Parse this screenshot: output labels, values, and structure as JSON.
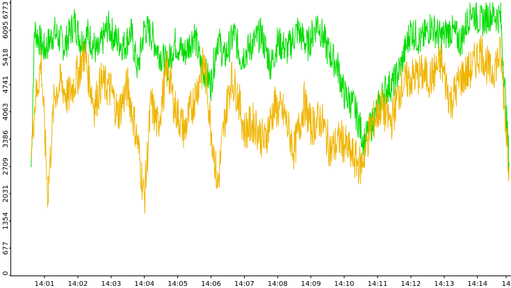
{
  "chart_data": {
    "type": "line",
    "title": "",
    "xlabel": "",
    "ylabel": "",
    "grid": false,
    "legend": "none",
    "x_tick_labels": [
      "14:01",
      "14:02",
      "14:03",
      "14:04",
      "14:05",
      "14:06",
      "14:07",
      "14:08",
      "14:09",
      "14:10",
      "14:11",
      "14:12",
      "14:13",
      "14:14",
      "14"
    ],
    "y_tick_labels": [
      "0",
      "677",
      "1354",
      "2031",
      "2709",
      "3386",
      "4063",
      "4741",
      "5418",
      "6095",
      "6773"
    ],
    "ylim": [
      0,
      6773
    ],
    "xlim_minutes": [
      0.6,
      15.0
    ],
    "series": [
      {
        "color": "#00dd00",
        "points": [
          [
            0.6,
            2700
          ],
          [
            0.7,
            6100
          ],
          [
            1.0,
            5600
          ],
          [
            1.3,
            6050
          ],
          [
            1.6,
            5700
          ],
          [
            1.9,
            6300
          ],
          [
            2.1,
            5800
          ],
          [
            2.3,
            6000
          ],
          [
            2.6,
            5500
          ],
          [
            2.9,
            6200
          ],
          [
            3.1,
            5900
          ],
          [
            3.4,
            5700
          ],
          [
            3.6,
            6050
          ],
          [
            3.8,
            5100
          ],
          [
            4.0,
            6150
          ],
          [
            4.2,
            6000
          ],
          [
            4.4,
            5600
          ],
          [
            4.7,
            5200
          ],
          [
            4.9,
            5800
          ],
          [
            5.2,
            5500
          ],
          [
            5.5,
            6000
          ],
          [
            5.7,
            5200
          ],
          [
            6.0,
            4750
          ],
          [
            6.2,
            5900
          ],
          [
            6.4,
            5400
          ],
          [
            6.7,
            6000
          ],
          [
            6.9,
            5400
          ],
          [
            7.2,
            5700
          ],
          [
            7.5,
            6000
          ],
          [
            7.8,
            5200
          ],
          [
            8.0,
            5800
          ],
          [
            8.3,
            5600
          ],
          [
            8.6,
            6100
          ],
          [
            8.9,
            5700
          ],
          [
            9.2,
            6300
          ],
          [
            9.5,
            5600
          ],
          [
            9.8,
            5200
          ],
          [
            10.0,
            4500
          ],
          [
            10.3,
            4200
          ],
          [
            10.6,
            3300
          ],
          [
            10.9,
            3900
          ],
          [
            11.2,
            4600
          ],
          [
            11.5,
            4800
          ],
          [
            11.7,
            5200
          ],
          [
            12.0,
            6100
          ],
          [
            12.3,
            5800
          ],
          [
            12.6,
            6200
          ],
          [
            12.9,
            5900
          ],
          [
            13.2,
            6100
          ],
          [
            13.5,
            5800
          ],
          [
            13.8,
            6600
          ],
          [
            14.1,
            6300
          ],
          [
            14.4,
            6500
          ],
          [
            14.7,
            6400
          ],
          [
            14.95,
            2800
          ]
        ]
      },
      {
        "color": "#f0b400",
        "points": [
          [
            0.6,
            3000
          ],
          [
            0.7,
            4200
          ],
          [
            0.9,
            5300
          ],
          [
            1.1,
            2000
          ],
          [
            1.3,
            4500
          ],
          [
            1.5,
            4800
          ],
          [
            1.7,
            4400
          ],
          [
            2.0,
            5000
          ],
          [
            2.2,
            5500
          ],
          [
            2.5,
            4200
          ],
          [
            2.7,
            4800
          ],
          [
            3.0,
            4600
          ],
          [
            3.2,
            4000
          ],
          [
            3.5,
            4700
          ],
          [
            3.8,
            3300
          ],
          [
            4.0,
            1900
          ],
          [
            4.2,
            4300
          ],
          [
            4.4,
            3700
          ],
          [
            4.7,
            5200
          ],
          [
            4.9,
            4200
          ],
          [
            5.2,
            3600
          ],
          [
            5.5,
            4400
          ],
          [
            5.8,
            5300
          ],
          [
            6.0,
            3700
          ],
          [
            6.2,
            2200
          ],
          [
            6.4,
            3800
          ],
          [
            6.6,
            4900
          ],
          [
            6.8,
            4500
          ],
          [
            7.0,
            3600
          ],
          [
            7.3,
            3800
          ],
          [
            7.6,
            3300
          ],
          [
            7.9,
            4200
          ],
          [
            8.2,
            4000
          ],
          [
            8.5,
            3100
          ],
          [
            8.8,
            4300
          ],
          [
            9.0,
            3700
          ],
          [
            9.3,
            3900
          ],
          [
            9.6,
            3100
          ],
          [
            9.9,
            3400
          ],
          [
            10.2,
            3000
          ],
          [
            10.5,
            2700
          ],
          [
            10.8,
            3700
          ],
          [
            11.1,
            4200
          ],
          [
            11.4,
            3800
          ],
          [
            11.7,
            4700
          ],
          [
            12.0,
            4900
          ],
          [
            12.3,
            5000
          ],
          [
            12.6,
            4900
          ],
          [
            12.9,
            5300
          ],
          [
            13.2,
            4300
          ],
          [
            13.5,
            4900
          ],
          [
            13.8,
            5100
          ],
          [
            14.1,
            5600
          ],
          [
            14.4,
            5000
          ],
          [
            14.7,
            5500
          ],
          [
            14.95,
            2700
          ]
        ]
      }
    ]
  }
}
